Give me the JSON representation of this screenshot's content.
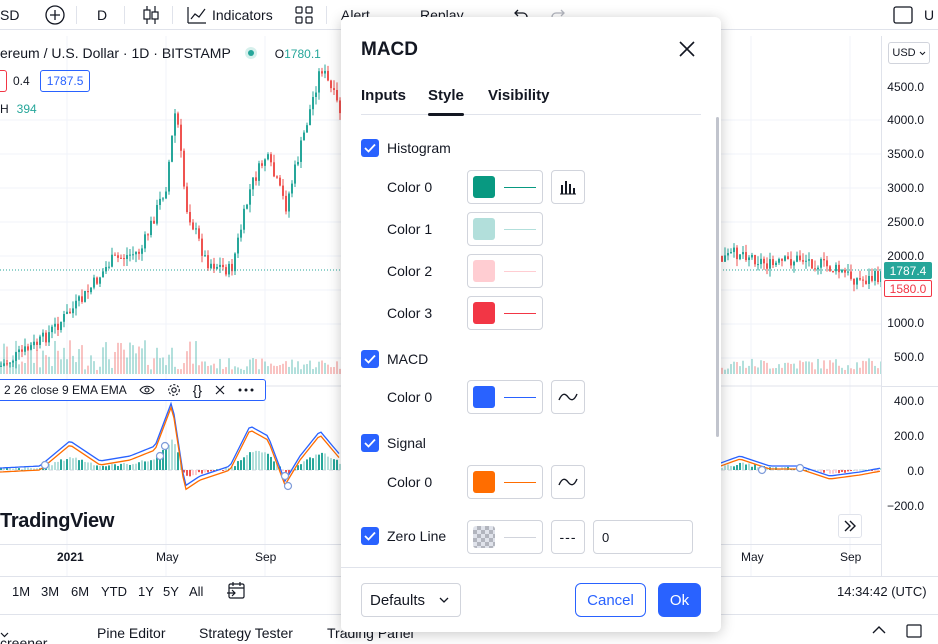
{
  "toolbar": {
    "symbol_tail": "SD",
    "interval": "D",
    "indicators_label": "Indicators",
    "alert_label": "Alert",
    "replay_label": "Replay",
    "right_cut_label": "U"
  },
  "chart": {
    "title": "ereum / U.S. Dollar · 1D · BITSTAMP",
    "ohlc_open_label": "O",
    "ohlc_open_value": "1780.1",
    "row_value_1": "0.4",
    "row_box_red": "",
    "row_box_blue": "1787.5",
    "volume_label": "H",
    "volume_value": "394",
    "indicator_legend": "2 26 close 9 EMA EMA",
    "logo_text": "TradingView",
    "currency_button": "USD",
    "price_axis": [
      "4500.0",
      "4000.0",
      "3500.0",
      "3000.0",
      "2500.0",
      "2000.0",
      "1000.0",
      "500.0"
    ],
    "last_price_tag": "1787.4",
    "red_price_tag": "1580.0",
    "macd_axis": [
      "400.0",
      "200.0",
      "0.0",
      "−200.0"
    ],
    "time_labels": [
      "2021",
      "May",
      "Sep",
      "May",
      "Sep"
    ],
    "up_color": "#26a69a",
    "down_color": "#ef5350"
  },
  "range_bar": {
    "ranges": [
      "1M",
      "3M",
      "6M",
      "YTD",
      "1Y",
      "5Y",
      "All"
    ],
    "clock": "14:34:42 (UTC)"
  },
  "bottom_tabs": [
    "creener",
    "Pine Editor",
    "Strategy Tester",
    "Trading Panel"
  ],
  "dialog": {
    "title": "MACD",
    "tabs": [
      "Inputs",
      "Style",
      "Visibility"
    ],
    "active_tab": "Style",
    "histogram": {
      "label": "Histogram",
      "checked": true,
      "colors": [
        {
          "label": "Color 0",
          "color": "#089981"
        },
        {
          "label": "Color 1",
          "color": "#B2DFDB"
        },
        {
          "label": "Color 2",
          "color": "#FFCDD2"
        },
        {
          "label": "Color 3",
          "color": "#F23645"
        }
      ]
    },
    "macd": {
      "label": "MACD",
      "checked": true,
      "color_label": "Color 0",
      "color": "#2962FF"
    },
    "signal": {
      "label": "Signal",
      "checked": true,
      "color_label": "Color 0",
      "color": "#FF6D00"
    },
    "zero_line": {
      "label": "Zero Line",
      "checked": true,
      "line_style": "---",
      "value": "0"
    },
    "footer": {
      "defaults_label": "Defaults",
      "cancel_label": "Cancel",
      "ok_label": "Ok"
    }
  }
}
